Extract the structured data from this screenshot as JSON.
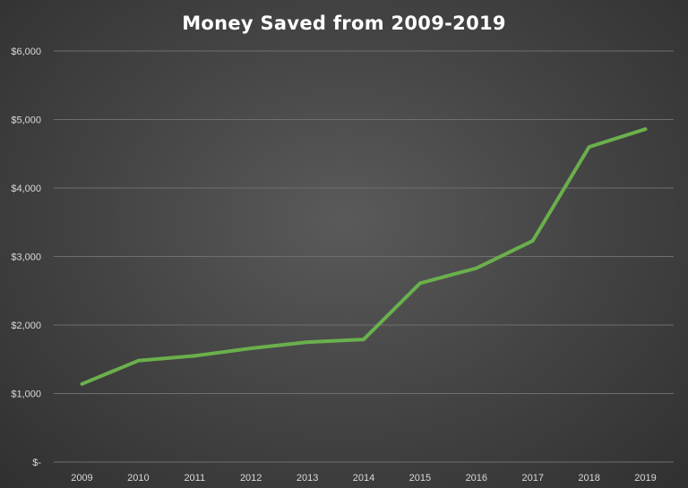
{
  "chart_data": {
    "type": "line",
    "title": "Money Saved from 2009-2019",
    "xlabel": "",
    "ylabel": "",
    "categories": [
      "2009",
      "2010",
      "2011",
      "2012",
      "2013",
      "2014",
      "2015",
      "2016",
      "2017",
      "2018",
      "2019"
    ],
    "y_tick_values": [
      0,
      1000,
      2000,
      3000,
      4000,
      5000,
      6000
    ],
    "y_tick_labels": [
      "$-",
      "$1,000",
      "$2,000",
      "$3,000",
      "$4,000",
      "$5,000",
      "$6,000"
    ],
    "ylim": [
      0,
      6000
    ],
    "grid": true,
    "legend": "none",
    "series": [
      {
        "color": "#6ab04c",
        "values": [
          1140,
          1480,
          1550,
          1660,
          1750,
          1790,
          2610,
          2830,
          3230,
          4600,
          4860
        ]
      }
    ]
  }
}
